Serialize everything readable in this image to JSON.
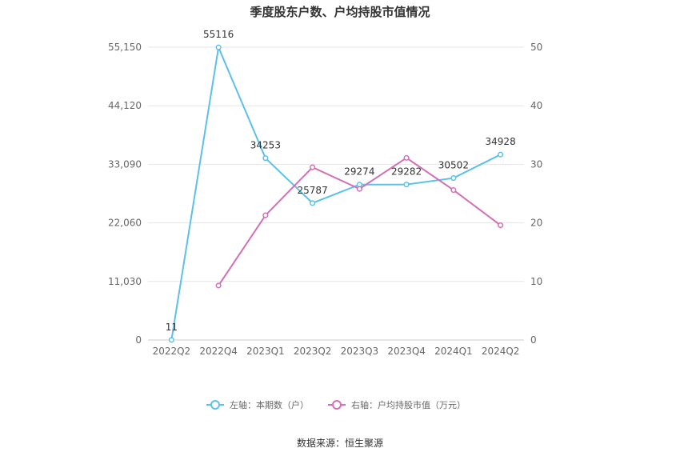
{
  "chart_data": {
    "type": "line",
    "title": "季度股东户数、户均持股市值情况",
    "categories": [
      "2022Q2",
      "2022Q4",
      "2023Q1",
      "2023Q2",
      "2023Q3",
      "2023Q4",
      "2024Q1",
      "2024Q2"
    ],
    "left_axis": {
      "ticks": [
        "0",
        "11,030",
        "22,060",
        "33,090",
        "44,120",
        "55,150"
      ],
      "ylim": [
        0,
        55150
      ]
    },
    "right_axis": {
      "ticks": [
        "0",
        "10",
        "20",
        "30",
        "40",
        "50"
      ],
      "ylim": [
        0,
        50
      ]
    },
    "series": [
      {
        "name": "左轴：本期数（户）",
        "axis": "left",
        "color": "#5bc0eb",
        "values": [
          11,
          55116,
          34253,
          25787,
          29274,
          29282,
          30502,
          34928
        ],
        "labels": [
          "11",
          "55116",
          "34253",
          "25787",
          "29274",
          "29282",
          "30502",
          "34928"
        ]
      },
      {
        "name": "右轴：户均持股市值（万元）",
        "axis": "right",
        "color": "#d36fb4",
        "values": [
          null,
          9.3,
          21.3,
          29.5,
          25.8,
          31.1,
          25.6,
          19.6
        ]
      }
    ],
    "legend_position": "bottom",
    "grid": true
  },
  "footer": {
    "source": "数据来源：恒生聚源"
  }
}
